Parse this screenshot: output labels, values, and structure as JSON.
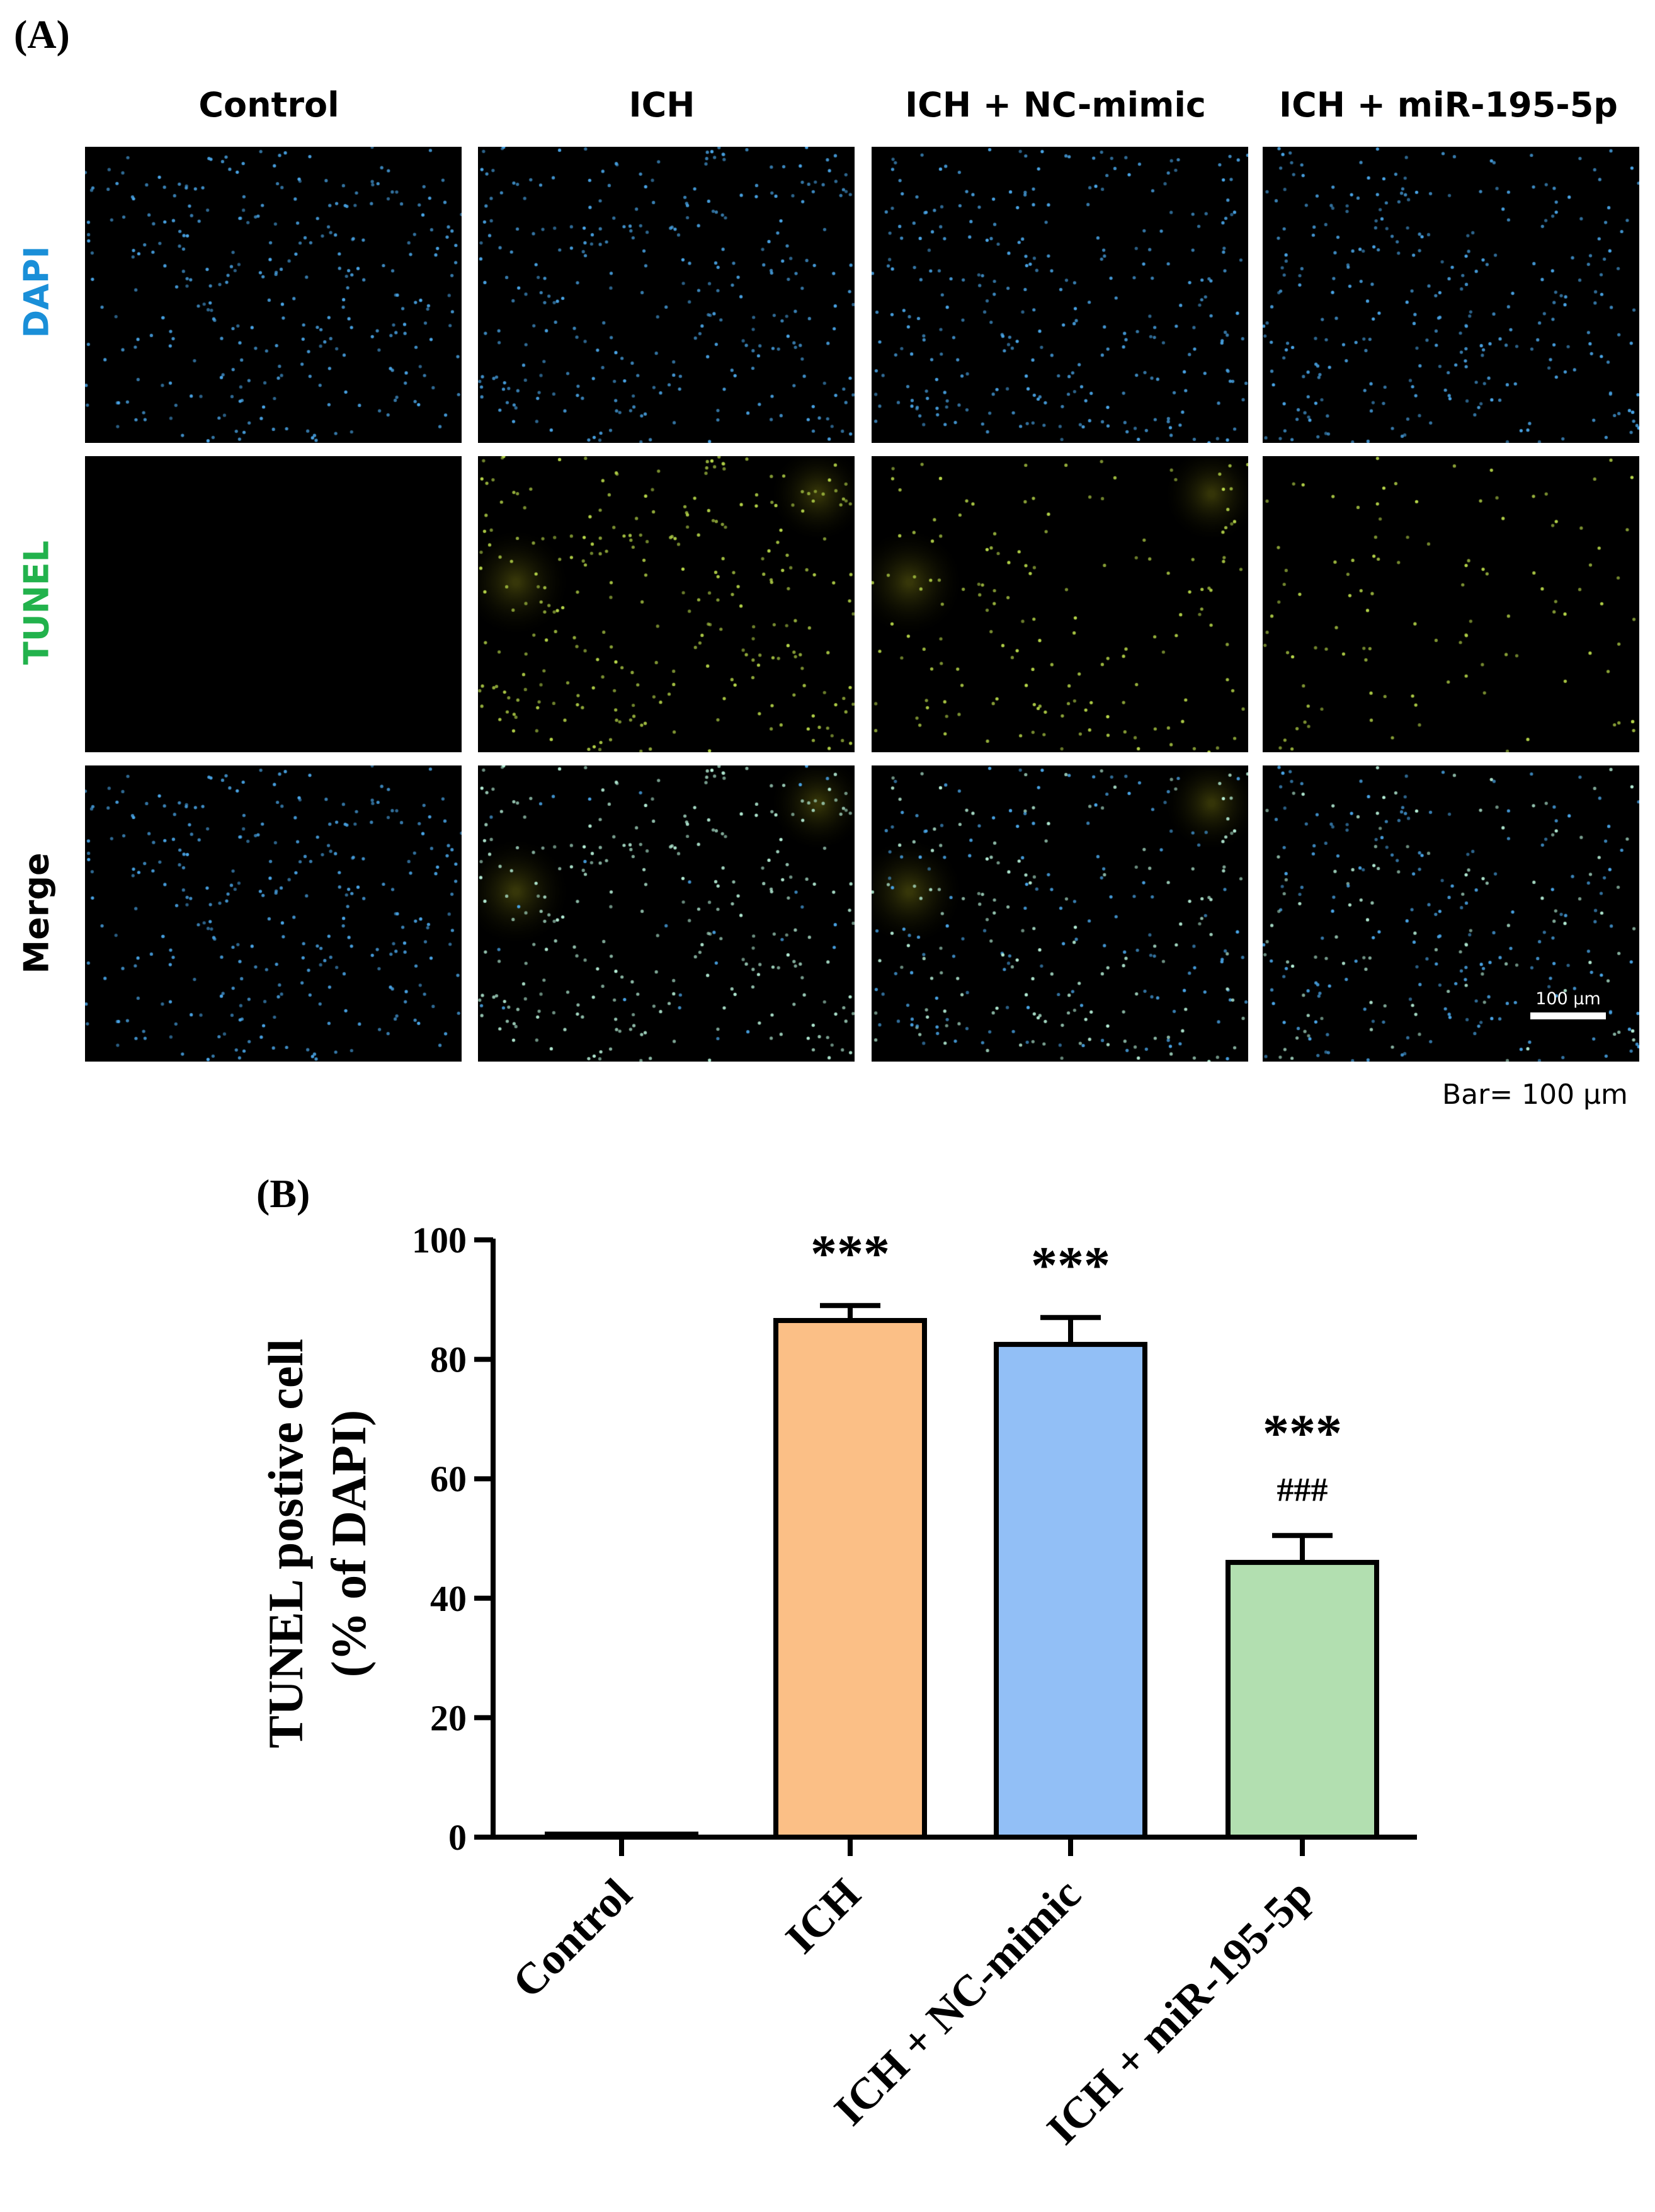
{
  "panel_a": {
    "label": "(A)",
    "columns": [
      "Control",
      "ICH",
      "ICH + NC-mimic",
      "ICH + miR-195-5p"
    ],
    "rows": [
      {
        "label": "DAPI",
        "color": "#1a8fd8"
      },
      {
        "label": "TUNEL",
        "color": "#22b24c"
      },
      {
        "label": "Merge",
        "color": "#000000"
      }
    ],
    "scale_bar_label": "100 µm",
    "bar_note": "Bar= 100 µm",
    "stain_colors": {
      "dapi": "#4aa6e8",
      "tunel": "#b8d84a",
      "merge_positive": "#b6f0d8"
    }
  },
  "panel_b": {
    "label": "(B)"
  },
  "chart_data": {
    "type": "bar",
    "categories": [
      "Control",
      "ICH",
      "ICH + NC-mimic",
      "ICH + miR-195-5p"
    ],
    "values": [
      0.5,
      86.5,
      82.5,
      46
    ],
    "errors": [
      0,
      2.5,
      4.5,
      4.5
    ],
    "colors": [
      "#ffffff",
      "#fbbf86",
      "#92bff6",
      "#b2dfb0"
    ],
    "significance": [
      [],
      [
        "***"
      ],
      [
        "***"
      ],
      [
        "***",
        "###"
      ]
    ],
    "ylabel_lines": [
      "TUNEL postive cell",
      "(% of DAPI)"
    ],
    "xlabel": "",
    "ylim": [
      0,
      100
    ],
    "yticks": [
      0,
      20,
      40,
      60,
      80,
      100
    ]
  }
}
